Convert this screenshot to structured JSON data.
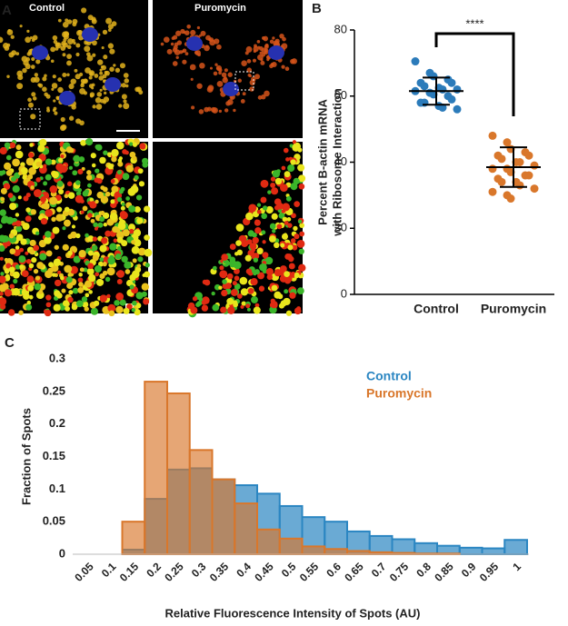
{
  "panel_a": {
    "label": "A",
    "titles": [
      "Control",
      "Puromycin"
    ]
  },
  "chart_data": [
    {
      "type": "strip",
      "panel_label": "B",
      "ylabel": [
        "Percent B-actin mRNA",
        "with Ribosome Interaction"
      ],
      "categories": [
        "Control",
        "Puromycin"
      ],
      "series": [
        {
          "color": "#2b7bba",
          "mean": 61.5,
          "sd": 4.1,
          "values": [
            70.5,
            67,
            66,
            65,
            64,
            64,
            63,
            62.5,
            62,
            62,
            61.5,
            61,
            60.5,
            60,
            59,
            58,
            58,
            57,
            56.5,
            56
          ]
        },
        {
          "color": "#d9772b",
          "mean": 38.5,
          "sd": 6,
          "values": [
            48,
            46,
            44,
            43,
            42,
            42,
            41,
            40,
            40,
            39,
            38,
            38,
            37,
            36,
            36,
            35,
            34,
            34,
            33,
            32,
            31,
            30,
            29
          ]
        }
      ],
      "annotation": "****",
      "ylim": [
        0,
        80
      ],
      "yticks": [
        0,
        20,
        40,
        60,
        80
      ]
    },
    {
      "type": "bar",
      "panel_label": "C",
      "bar_mode": "overlay",
      "xlabel": "Relative Fluorescence Intensity of Spots (AU)",
      "ylabel": "Fraction of Spots",
      "categories": [
        "0.05",
        "0.1",
        "0.15",
        "0.2",
        "0.25",
        "0.3",
        "0.35",
        "0.4",
        "0.45",
        "0.5",
        "0.55",
        "0.6",
        "0.65",
        "0.7",
        "0.75",
        "0.8",
        "0.85",
        "0.9",
        "0.95",
        "1"
      ],
      "series": [
        {
          "name": "Control",
          "color": "#2b86c2",
          "values": [
            0,
            0,
            0.007,
            0.085,
            0.13,
            0.132,
            0.115,
            0.106,
            0.093,
            0.074,
            0.057,
            0.05,
            0.035,
            0.028,
            0.023,
            0.017,
            0.013,
            0.01,
            0.009,
            0.022
          ]
        },
        {
          "name": "Puromycin",
          "color": "#d9772b",
          "values": [
            0,
            0,
            0.05,
            0.265,
            0.247,
            0.16,
            0.115,
            0.078,
            0.038,
            0.024,
            0.012,
            0.008,
            0.005,
            0.003,
            0.002,
            0.001,
            0.001,
            0,
            0,
            0
          ]
        }
      ],
      "ylim": [
        0,
        0.3
      ],
      "yticks": [
        0,
        0.05,
        0.1,
        0.15,
        0.2,
        0.25,
        0.3
      ]
    }
  ]
}
